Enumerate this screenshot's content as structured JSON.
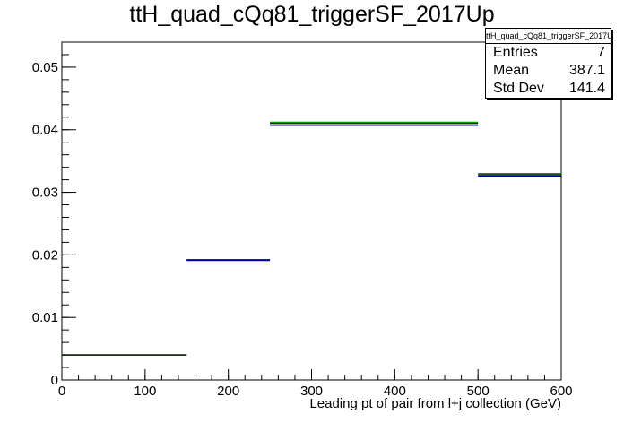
{
  "chart_data": {
    "type": "histogram",
    "title": "ttH_quad_cQq81_triggerSF_2017Up",
    "xlabel": "Leading pt of pair from l+j collection (GeV)",
    "ylabel": "",
    "xlim": [
      0,
      600
    ],
    "ylim": [
      0,
      0.054
    ],
    "x_ticks": [
      0,
      100,
      200,
      300,
      400,
      500,
      600
    ],
    "y_ticks": [
      0,
      0.01,
      0.02,
      0.03,
      0.04,
      0.05
    ],
    "x_tick_labels": [
      "0",
      "100",
      "200",
      "300",
      "400",
      "500",
      "600"
    ],
    "y_tick_labels": [
      "0",
      "0.01",
      "0.02",
      "0.03",
      "0.04",
      "0.05"
    ],
    "grid": false,
    "series": [
      {
        "color": "#00a000",
        "bins": [
          {
            "x0": 0,
            "x1": 150,
            "y": 0.004
          },
          {
            "x0": 150,
            "x1": 250,
            "y": 0.0192
          },
          {
            "x0": 250,
            "x1": 500,
            "y": 0.0412
          },
          {
            "x0": 500,
            "x1": 600,
            "y": 0.033
          }
        ]
      },
      {
        "color": "#000000",
        "bins": [
          {
            "x0": 0,
            "x1": 150,
            "y": 0.004
          },
          {
            "x0": 150,
            "x1": 250,
            "y": 0.0192
          },
          {
            "x0": 250,
            "x1": 500,
            "y": 0.041
          },
          {
            "x0": 500,
            "x1": 600,
            "y": 0.0328
          }
        ]
      },
      {
        "color": "#0000a0",
        "bins": [
          {
            "x0": 150,
            "x1": 250,
            "y": 0.0191
          },
          {
            "x0": 250,
            "x1": 500,
            "y": 0.0407
          },
          {
            "x0": 500,
            "x1": 600,
            "y": 0.0326
          }
        ]
      }
    ],
    "stats_box": {
      "title": "ttH_quad_cQq81_triggerSF_2017Up",
      "position": "top-right",
      "entries_label": "Entries",
      "entries_value": "7",
      "mean_label": "Mean",
      "mean_value": "387.1",
      "stddev_label": "Std Dev",
      "stddev_value": "141.4"
    }
  }
}
